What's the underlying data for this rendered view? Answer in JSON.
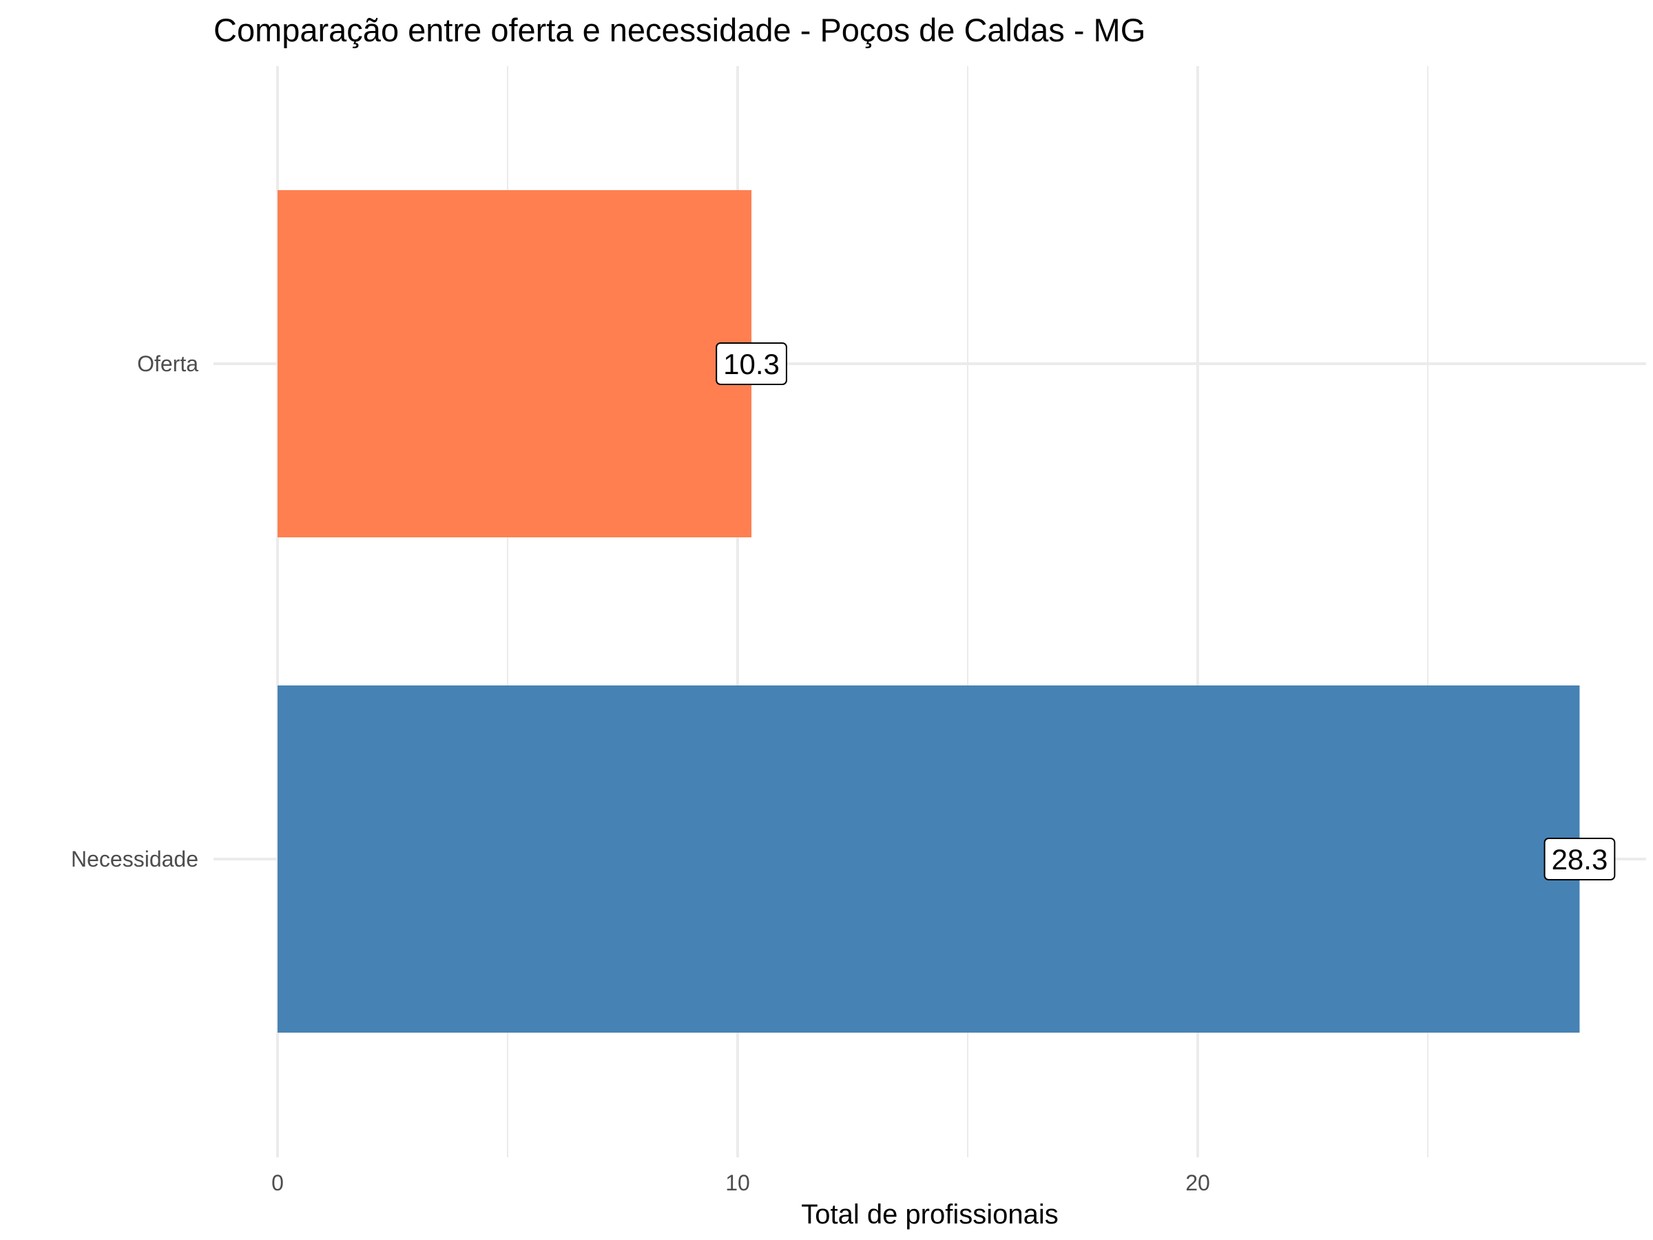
{
  "chart_data": {
    "type": "bar",
    "orientation": "horizontal",
    "title": "Comparação entre oferta e necessidade - Poços de Caldas - MG",
    "xlabel": "Total de profissionais",
    "ylabel": "",
    "xlim": [
      0,
      29.7
    ],
    "xticks": [
      0,
      10,
      20
    ],
    "grid": true,
    "legend": "none",
    "categories": [
      "Oferta",
      "Necessidade"
    ],
    "values": [
      10.3,
      28.3
    ],
    "data_labels": [
      "10.3",
      "28.3"
    ],
    "colors": [
      "#FF7F50",
      "#4682B4"
    ]
  }
}
